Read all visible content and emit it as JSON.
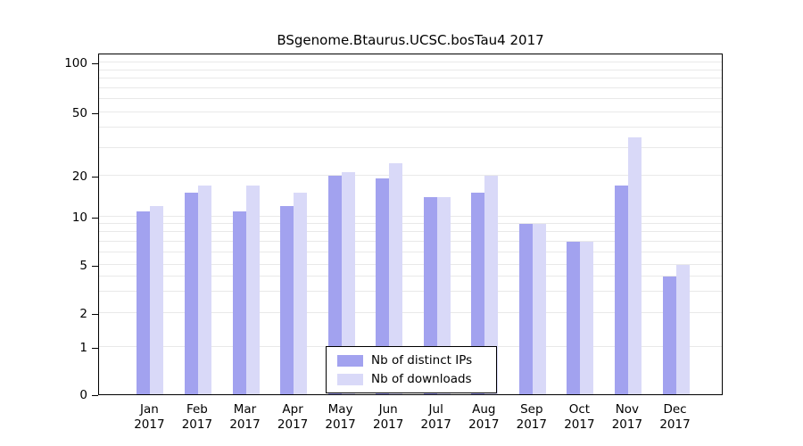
{
  "chart_data": {
    "type": "bar",
    "title": "BSgenome.Btaurus.UCSC.bosTau4 2017",
    "categories": [
      "Jan",
      "Feb",
      "Mar",
      "Apr",
      "May",
      "Jun",
      "Jul",
      "Aug",
      "Sep",
      "Oct",
      "Nov",
      "Dec"
    ],
    "year": "2017",
    "series": [
      {
        "name": "Nb of distinct IPs",
        "color": "#a2a2ef",
        "values": [
          11,
          15,
          11,
          12,
          20,
          19,
          14,
          15,
          9,
          7,
          17,
          4
        ]
      },
      {
        "name": "Nb of downloads",
        "color": "#d9d9f8",
        "values": [
          12,
          17,
          17,
          15,
          21,
          24,
          14,
          20,
          9,
          7,
          35,
          5
        ]
      }
    ],
    "yticks": [
      0,
      1,
      2,
      5,
      10,
      20,
      50,
      100
    ],
    "yscale": "log",
    "ylim": [
      0,
      100
    ],
    "grid": true,
    "legend_position": "inside-bottom-center"
  }
}
